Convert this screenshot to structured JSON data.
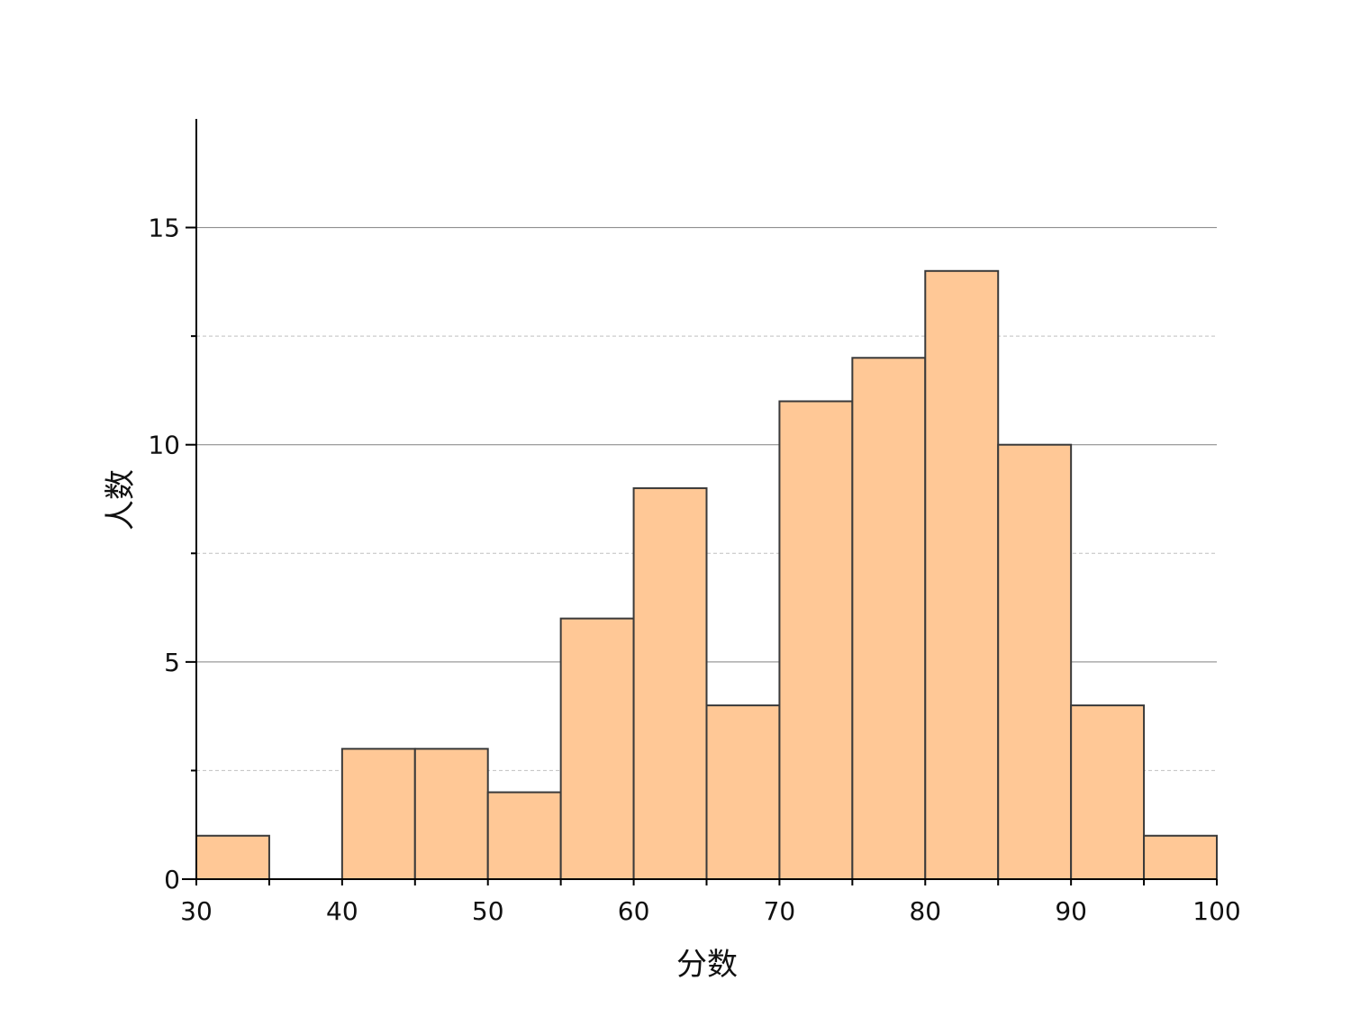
{
  "chart_data": {
    "type": "bar",
    "subtype": "histogram",
    "title": "",
    "xlabel": "分数",
    "ylabel": "人数",
    "bin_edges": [
      30,
      35,
      40,
      45,
      50,
      55,
      60,
      65,
      70,
      75,
      80,
      85,
      90,
      95,
      100
    ],
    "values": [
      1,
      0,
      3,
      3,
      2,
      6,
      9,
      4,
      11,
      12,
      14,
      10,
      4,
      1
    ],
    "xlim": [
      30,
      100
    ],
    "ylim": [
      0,
      17.5
    ],
    "xticks": [
      "30",
      "40",
      "50",
      "60",
      "70",
      "80",
      "90",
      "100"
    ],
    "yticks": [
      "0",
      "5",
      "10",
      "15"
    ],
    "y_minor_grid": [
      2.5,
      7.5,
      12.5
    ],
    "grid": "horizontal major solid, minor dashed",
    "colors": {
      "bar_fill": "#FFC896",
      "bar_edge": "#3a3a3a",
      "grid_major": "#808080",
      "grid_minor": "#c0c0c0"
    }
  }
}
